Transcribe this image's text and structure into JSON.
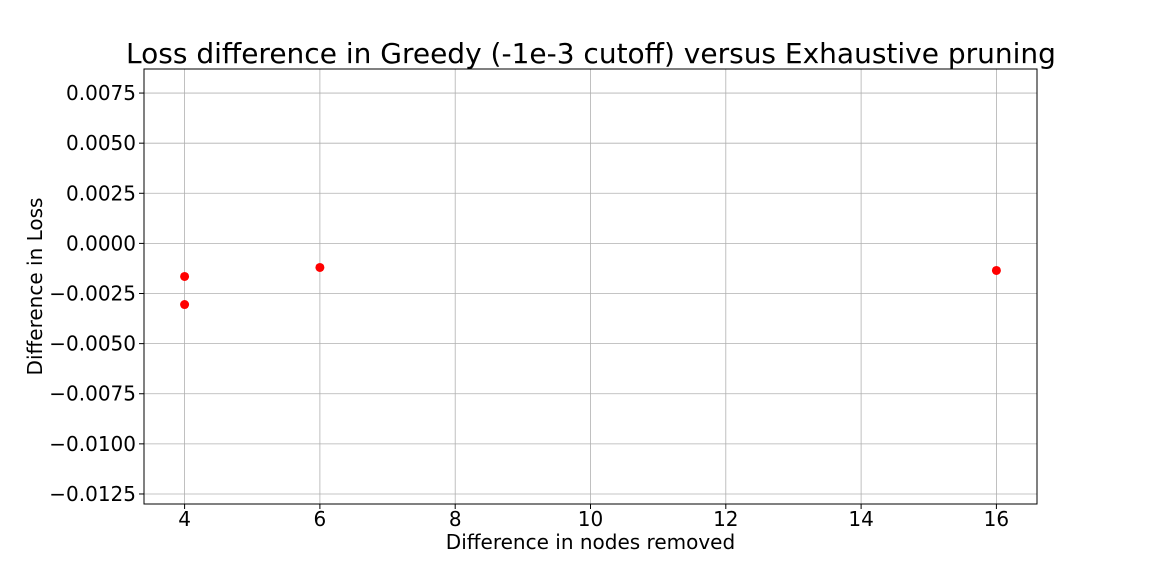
{
  "chart_data": {
    "type": "scatter",
    "title": "Loss difference in Greedy (-1e-3 cutoff) versus Exhaustive pruning",
    "xlabel": "Difference in nodes removed",
    "ylabel": "Difference in Loss",
    "xlim": [
      3.4,
      16.6
    ],
    "ylim": [
      -0.013,
      0.0087
    ],
    "xticks": [
      4,
      6,
      8,
      10,
      12,
      14,
      16
    ],
    "xtick_labels": [
      "4",
      "6",
      "8",
      "10",
      "12",
      "14",
      "16"
    ],
    "yticks": [
      0.0075,
      0.005,
      0.0025,
      0.0,
      -0.0025,
      -0.005,
      -0.0075,
      -0.01,
      -0.0125
    ],
    "ytick_labels": [
      "0.0075",
      "0.0050",
      "0.0025",
      "0.0000",
      "−0.0025",
      "−0.0050",
      "−0.0075",
      "−0.0100",
      "−0.0125"
    ],
    "grid": true,
    "marker_color": "#ff0000",
    "points": [
      {
        "x": 4,
        "y": -0.00165
      },
      {
        "x": 4,
        "y": -0.00305
      },
      {
        "x": 6,
        "y": -0.0012
      },
      {
        "x": 16,
        "y": -0.00135
      }
    ]
  }
}
